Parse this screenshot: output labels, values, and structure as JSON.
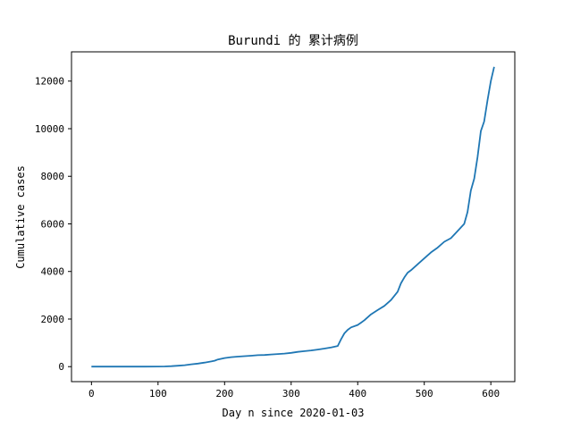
{
  "chart_data": {
    "type": "line",
    "title": "Burundi 的 累计病例",
    "xlabel": "Day n since 2020-01-03",
    "ylabel": "Cumulative cases",
    "xlim": [
      -30,
      636
    ],
    "ylim": [
      -630,
      13230
    ],
    "xticks": [
      0,
      100,
      200,
      300,
      400,
      500,
      600
    ],
    "yticks": [
      0,
      2000,
      4000,
      6000,
      8000,
      10000,
      12000
    ],
    "xtick_labels": [
      "0",
      "100",
      "200",
      "300",
      "400",
      "500",
      "600"
    ],
    "ytick_labels": [
      "0",
      "2000",
      "4000",
      "6000",
      "8000",
      "10000",
      "12000"
    ],
    "grid": false,
    "series": [
      {
        "color": "#1f77b4",
        "x": [
          0,
          20,
          40,
          60,
          80,
          100,
          110,
          120,
          130,
          140,
          150,
          160,
          170,
          180,
          185,
          190,
          200,
          210,
          220,
          230,
          240,
          250,
          260,
          270,
          280,
          290,
          300,
          310,
          320,
          330,
          340,
          350,
          360,
          370,
          375,
          380,
          385,
          390,
          400,
          405,
          410,
          420,
          430,
          440,
          450,
          460,
          465,
          470,
          475,
          480,
          490,
          500,
          510,
          520,
          530,
          540,
          550,
          560,
          565,
          570,
          575,
          580,
          585,
          590,
          595,
          600,
          605
        ],
        "y": [
          0,
          0,
          0,
          0,
          0,
          5,
          10,
          20,
          40,
          60,
          100,
          130,
          170,
          220,
          250,
          300,
          360,
          400,
          420,
          440,
          460,
          480,
          490,
          510,
          530,
          550,
          580,
          620,
          650,
          680,
          720,
          760,
          810,
          870,
          1150,
          1400,
          1550,
          1650,
          1750,
          1850,
          1950,
          2200,
          2380,
          2550,
          2800,
          3150,
          3500,
          3750,
          3950,
          4050,
          4300,
          4550,
          4800,
          5000,
          5250,
          5400,
          5700,
          6000,
          6500,
          7400,
          7900,
          8800,
          9900,
          10300,
          11200,
          12000,
          12600
        ]
      }
    ]
  }
}
